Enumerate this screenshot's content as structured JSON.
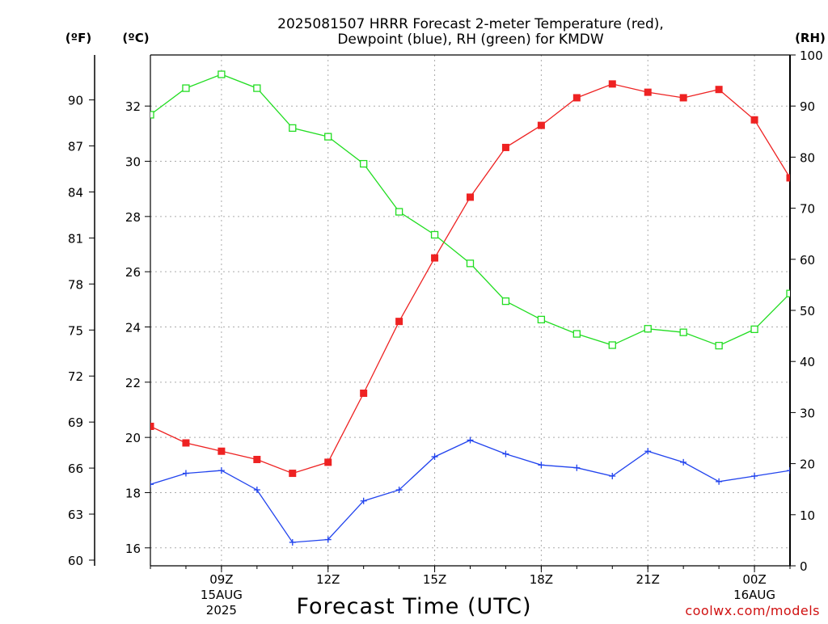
{
  "chart_data": {
    "type": "line",
    "title": "2025081507 HRRR Forecast 2-meter Temperature (red),",
    "subtitle": "Dewpoint (blue), RH (green) for KMDW",
    "xlabel": "Forecast Time (UTC)",
    "credit": "coolwx.com/models",
    "unit_labels": {
      "fahrenheit": "(ºF)",
      "celsius": "(ºC)",
      "rh": "(RH)"
    },
    "x": [
      "2025-08-15 07Z",
      "2025-08-15 08Z",
      "2025-08-15 09Z",
      "2025-08-15 10Z",
      "2025-08-15 11Z",
      "2025-08-15 12Z",
      "2025-08-15 13Z",
      "2025-08-15 14Z",
      "2025-08-15 15Z",
      "2025-08-15 16Z",
      "2025-08-15 17Z",
      "2025-08-15 18Z",
      "2025-08-15 19Z",
      "2025-08-15 20Z",
      "2025-08-15 21Z",
      "2025-08-15 22Z",
      "2025-08-15 23Z",
      "2025-08-16 00Z",
      "2025-08-16 01Z"
    ],
    "x_ticks": [
      {
        "index": 2,
        "label": "09Z",
        "date": "15AUG",
        "year": "2025"
      },
      {
        "index": 5,
        "label": "12Z",
        "date": "",
        "year": ""
      },
      {
        "index": 8,
        "label": "15Z",
        "date": "",
        "year": ""
      },
      {
        "index": 11,
        "label": "18Z",
        "date": "",
        "year": ""
      },
      {
        "index": 14,
        "label": "21Z",
        "date": "",
        "year": ""
      },
      {
        "index": 17,
        "label": "00Z",
        "date": "16AUG",
        "year": ""
      }
    ],
    "xlim": [
      0,
      18
    ],
    "axes": {
      "celsius": {
        "range": [
          15.35,
          33.85
        ],
        "ticks": [
          16,
          18,
          20,
          22,
          24,
          26,
          28,
          30,
          32
        ]
      },
      "fahrenheit": {
        "range": [
          59.63,
          92.93
        ],
        "ticks": [
          60,
          63,
          66,
          69,
          72,
          75,
          78,
          81,
          84,
          87,
          90
        ]
      },
      "rh": {
        "range": [
          0,
          100
        ],
        "ticks": [
          0,
          10,
          20,
          30,
          40,
          50,
          60,
          70,
          80,
          90,
          100
        ]
      }
    },
    "grid": true,
    "series": [
      {
        "name": "Temperature",
        "axis": "celsius",
        "color": "#ee2222",
        "marker": "filled-square",
        "values": [
          20.4,
          19.8,
          19.5,
          19.2,
          18.7,
          19.1,
          21.6,
          24.2,
          26.5,
          28.7,
          30.5,
          31.3,
          32.3,
          32.8,
          32.5,
          32.3,
          32.6,
          31.5,
          29.4
        ]
      },
      {
        "name": "Dewpoint",
        "axis": "celsius",
        "color": "#2244ee",
        "marker": "plus",
        "values": [
          18.3,
          18.7,
          18.8,
          18.1,
          16.2,
          16.3,
          17.7,
          18.1,
          19.3,
          19.9,
          19.4,
          19.0,
          18.9,
          18.6,
          19.5,
          19.1,
          18.4,
          18.6,
          18.8
        ]
      },
      {
        "name": "RH",
        "axis": "rh",
        "color": "#22dd22",
        "marker": "open-square",
        "values": [
          88.3,
          93.5,
          96.2,
          93.5,
          85.7,
          84.0,
          78.7,
          69.3,
          64.8,
          59.2,
          51.8,
          48.2,
          45.4,
          43.2,
          46.4,
          45.7,
          43.1,
          46.3,
          53.3
        ]
      }
    ]
  }
}
